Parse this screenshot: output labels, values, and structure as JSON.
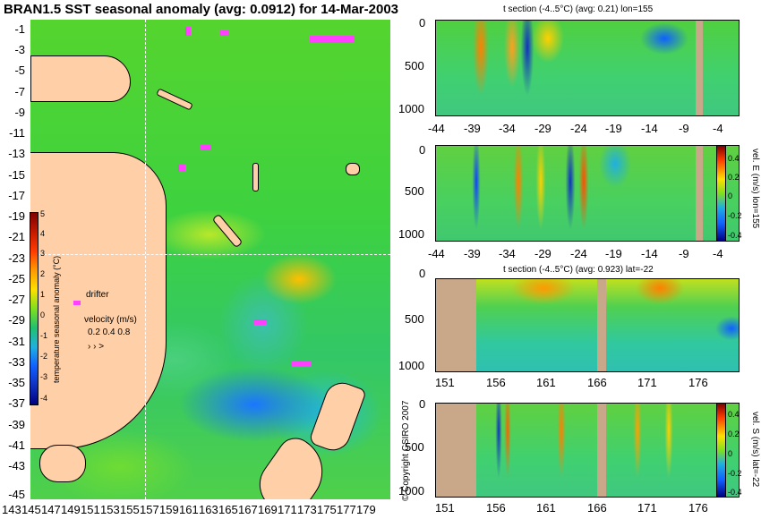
{
  "title": "BRAN1.5 SST seasonal anomaly (avg: 0.0912) for 14-Mar-2003",
  "map": {
    "lat_labels": [
      "-1",
      "-3",
      "-5",
      "-7",
      "-9",
      "-11",
      "-13",
      "-15",
      "-17",
      "-19",
      "-21",
      "-23",
      "-25",
      "-27",
      "-29",
      "-31",
      "-33",
      "-35",
      "-37",
      "-39",
      "-41",
      "-43",
      "-45"
    ],
    "lon_labels": [
      "143",
      "145",
      "147",
      "149",
      "151",
      "153",
      "155",
      "157",
      "159",
      "161",
      "163",
      "165",
      "167",
      "169",
      "171",
      "173",
      "175",
      "177",
      "179"
    ],
    "drifter_label": "drifter",
    "velocity_label": "velocity (m/s)",
    "velocity_scale": "0.2 0.4 0.8",
    "colorbar_ticks": [
      "5",
      "4",
      "3",
      "2",
      "1",
      "0",
      "-1",
      "-2",
      "-3",
      "-4"
    ],
    "colorbar_label": "temperature seasonal anomaly (°C)",
    "section_lon": 155,
    "section_lat": -22
  },
  "panels": [
    {
      "title": "t section (-4..5°C) (avg: 0.21) lon=155",
      "y_ticks": [
        "0",
        "500",
        "1000"
      ],
      "x_ticks": [
        "-44",
        "-39",
        "-34",
        "-29",
        "-24",
        "-19",
        "-14",
        "-9",
        "-4"
      ]
    },
    {
      "title": "",
      "y_ticks": [
        "0",
        "500",
        "1000"
      ],
      "x_ticks": [
        "-44",
        "-39",
        "-34",
        "-29",
        "-24",
        "-19",
        "-14",
        "-9",
        "-4"
      ],
      "scale_ticks": [
        "0.4",
        "0.2",
        "0",
        "-0.2",
        "-0.4"
      ],
      "scale_label": "vel. E (m/s) lon=155"
    },
    {
      "title": "t section (-4..5°C) (avg: 0.923) lat=-22",
      "y_ticks": [
        "0",
        "500",
        "1000"
      ],
      "x_ticks": [
        "151",
        "156",
        "161",
        "166",
        "171",
        "176"
      ]
    },
    {
      "title": "",
      "y_ticks": [
        "0",
        "500",
        "1000"
      ],
      "x_ticks": [
        "151",
        "156",
        "161",
        "166",
        "171",
        "176"
      ],
      "scale_ticks": [
        "0.4",
        "0.2",
        "0",
        "-0.2",
        "-0.4"
      ],
      "scale_label": "vel. S (m/s) lat=-22"
    }
  ],
  "copyright": "© Copyright CSIRO 2007",
  "colors": {
    "land": "#ffd0a8",
    "section_land": "#c8a888",
    "warm": "#ff9a00",
    "cool": "#1a76ff",
    "neutral": "#40d040",
    "drifter": "#ff40ff"
  }
}
